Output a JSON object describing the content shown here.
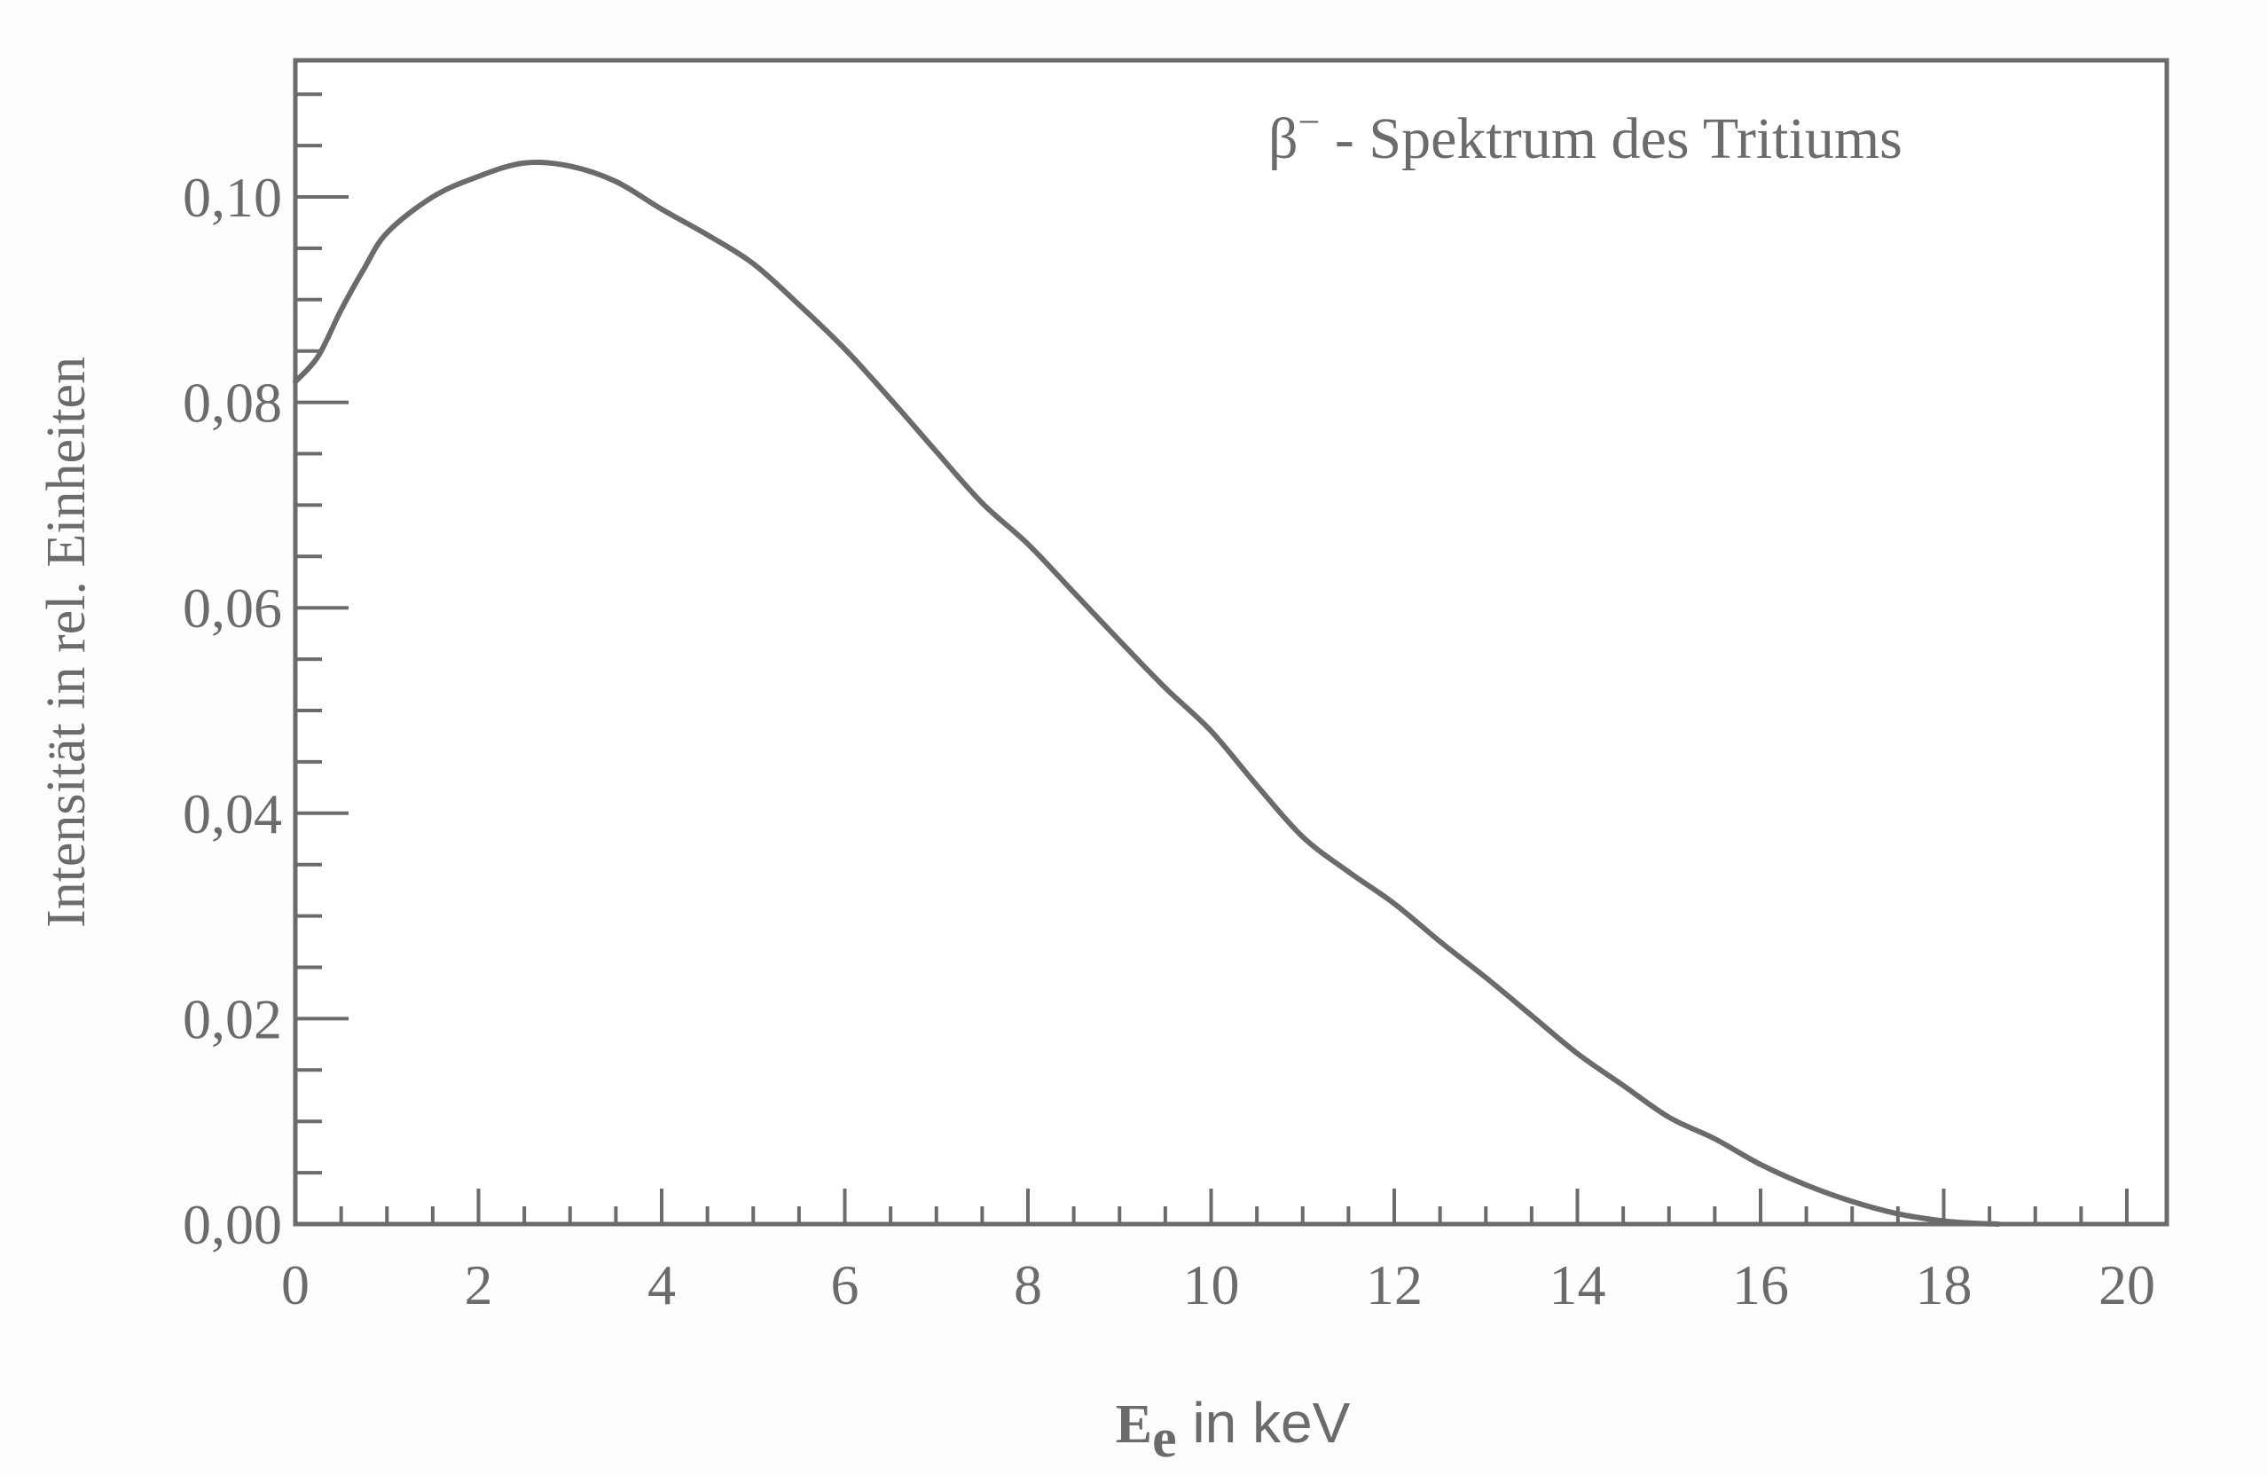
{
  "chart_data": {
    "type": "line",
    "title": "β⁻ - Spektrum des Tritiums",
    "annotation": {
      "symbol": "β",
      "superscript": "−",
      "text": " - Spektrum des Tritiums"
    },
    "xlabel": {
      "main": "E",
      "subscript": "e",
      "rest": " in keV"
    },
    "ylabel": "Intensität in rel. Einheiten",
    "xlim": [
      0,
      20.5
    ],
    "ylim": [
      0,
      0.113
    ],
    "x_ticks": [
      0,
      2,
      4,
      6,
      8,
      10,
      12,
      14,
      16,
      18,
      20
    ],
    "x_tick_labels": [
      "0",
      "2",
      "4",
      "6",
      "8",
      "10",
      "12",
      "14",
      "16",
      "18",
      "20"
    ],
    "x_minor_step": 0.5,
    "y_ticks": [
      0.0,
      0.02,
      0.04,
      0.06,
      0.08,
      0.1
    ],
    "y_tick_labels": [
      "0,00",
      "0,02",
      "0,04",
      "0,06",
      "0,08",
      "0,10"
    ],
    "y_minor_step": 0.005,
    "grid": false,
    "legend": null,
    "series": [
      {
        "name": "β⁻ - Spektrum des Tritiums",
        "color": "#6b6b6b",
        "x": [
          0,
          0.25,
          0.5,
          0.75,
          1,
          1.5,
          2,
          2.5,
          3,
          3.5,
          4,
          4.5,
          5,
          5.5,
          6,
          6.5,
          7,
          7.5,
          8,
          8.5,
          9,
          9.5,
          10,
          10.5,
          11,
          11.5,
          12,
          12.5,
          13,
          13.5,
          14,
          14.5,
          15,
          15.5,
          16,
          16.5,
          17,
          17.5,
          18,
          18.3,
          18.6
        ],
        "y": [
          0.082,
          0.0845,
          0.089,
          0.093,
          0.0965,
          0.1,
          0.102,
          0.1033,
          0.103,
          0.1015,
          0.0988,
          0.0963,
          0.0935,
          0.0895,
          0.0852,
          0.0803,
          0.0752,
          0.0702,
          0.0662,
          0.0615,
          0.0568,
          0.0522,
          0.048,
          0.0427,
          0.0377,
          0.0343,
          0.0312,
          0.0275,
          0.024,
          0.0203,
          0.0166,
          0.0135,
          0.0104,
          0.0083,
          0.0058,
          0.0038,
          0.0022,
          0.001,
          0.0003,
          0.0001,
          0.0
        ]
      }
    ]
  },
  "colors": {
    "axis": "#6b6b6b",
    "curve": "#6b6b6b",
    "background": "#fdfdfd"
  }
}
